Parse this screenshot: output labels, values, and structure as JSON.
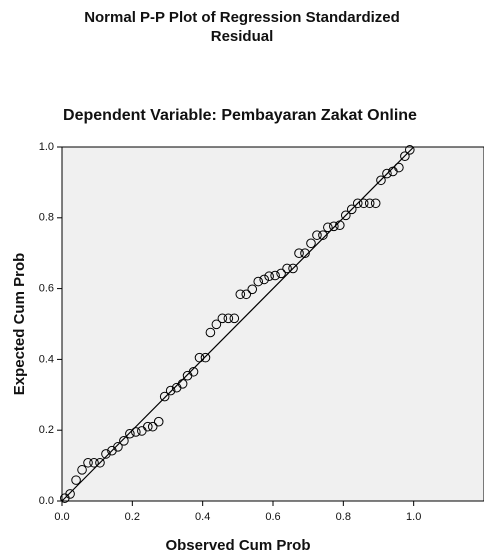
{
  "chart_data": {
    "type": "scatter",
    "title": "Normal P-P Plot of Regression Standardized Residual",
    "subtitle": "Dependent Variable: Pembayaran Zakat Online",
    "x_label": "Observed Cum Prob",
    "y_label": "Expected Cum Prob",
    "xlim": [
      0,
      1.2
    ],
    "ylim": [
      0,
      1
    ],
    "xticks": [
      {
        "value": 0,
        "label": "0.0"
      },
      0.2,
      0.4,
      0.6,
      0.8,
      {
        "value": 1,
        "label": "1.0"
      }
    ],
    "yticks": [
      {
        "value": 0,
        "label": "0.0"
      },
      0.2,
      0.4,
      0.6,
      0.8,
      {
        "value": 1,
        "label": "1.0"
      }
    ],
    "background": "#f0f0f0",
    "color": "#000000",
    "reference_line": {
      "x": [
        0,
        1
      ],
      "y": [
        0,
        1
      ]
    },
    "x": [
      0.008,
      0.023,
      0.04,
      0.057,
      0.074,
      0.091,
      0.108,
      0.125,
      0.142,
      0.159,
      0.176,
      0.193,
      0.21,
      0.227,
      0.244,
      0.258,
      0.275,
      0.292,
      0.309,
      0.326,
      0.343,
      0.357,
      0.374,
      0.391,
      0.408,
      0.422,
      0.439,
      0.456,
      0.473,
      0.49,
      0.507,
      0.524,
      0.541,
      0.558,
      0.575,
      0.589,
      0.606,
      0.623,
      0.64,
      0.657,
      0.674,
      0.691,
      0.708,
      0.725,
      0.742,
      0.756,
      0.773,
      0.79,
      0.807,
      0.824,
      0.841,
      0.858,
      0.875,
      0.892,
      0.907,
      0.924,
      0.941,
      0.958,
      0.975,
      0.989
    ],
    "values": [
      0.008,
      0.02,
      0.059,
      0.088,
      0.108,
      0.108,
      0.108,
      0.133,
      0.142,
      0.153,
      0.17,
      0.19,
      0.195,
      0.198,
      0.21,
      0.21,
      0.224,
      0.295,
      0.312,
      0.32,
      0.331,
      0.354,
      0.365,
      0.405,
      0.405,
      0.476,
      0.499,
      0.516,
      0.516,
      0.516,
      0.584,
      0.584,
      0.598,
      0.62,
      0.626,
      0.635,
      0.637,
      0.643,
      0.657,
      0.657,
      0.7,
      0.7,
      0.728,
      0.751,
      0.751,
      0.773,
      0.776,
      0.779,
      0.807,
      0.824,
      0.841,
      0.841,
      0.841,
      0.841,
      0.906,
      0.925,
      0.931,
      0.942,
      0.974,
      0.992
    ]
  }
}
